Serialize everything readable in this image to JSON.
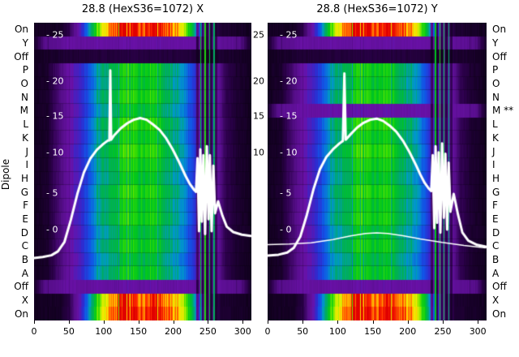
{
  "figure": {
    "background": "#ffffff",
    "text_color": "#000000"
  },
  "chart_data": {
    "type": "heatmap",
    "y_axis_label": "Dipole",
    "x_axis": {
      "ticks": [
        0,
        50,
        100,
        150,
        200,
        250,
        300
      ],
      "max": 312.5
    },
    "y_rows_left": [
      "On",
      "Y",
      "Off",
      "P",
      "O",
      "N",
      "M",
      "L",
      "K",
      "J",
      "I",
      "H",
      "G",
      "F",
      "E",
      "D",
      "C",
      "B",
      "A",
      "Off",
      "X",
      "On"
    ],
    "y_rows_right": [
      "On",
      "Y",
      "Off",
      "P",
      "O",
      "N",
      "M **",
      "L",
      "K",
      "J",
      "I",
      "H",
      "G",
      "F",
      "E",
      "D",
      "C",
      "B",
      "A",
      "Off",
      "X",
      "On"
    ],
    "inner_y_ticks": {
      "left_labels": [
        "- 25",
        "- 20",
        "- 15",
        "- 10",
        "- 5",
        "- 0"
      ],
      "left_pos": [
        0.04,
        0.196,
        0.312,
        0.437,
        0.572,
        0.695
      ],
      "right_labels": [
        "25",
        "20",
        "15",
        "10"
      ],
      "right_pos": [
        0.04,
        0.196,
        0.312,
        0.437
      ]
    },
    "overlay_color": "#ffffff",
    "colormap": [
      [
        0.0,
        "#0a0012"
      ],
      [
        0.08,
        "#2a0048"
      ],
      [
        0.16,
        "#560e8a"
      ],
      [
        0.24,
        "#6a11a8"
      ],
      [
        0.32,
        "#2e2bd0"
      ],
      [
        0.4,
        "#1155e8"
      ],
      [
        0.48,
        "#0099cc"
      ],
      [
        0.54,
        "#00aa66"
      ],
      [
        0.62,
        "#00c61e"
      ],
      [
        0.7,
        "#3fe000"
      ],
      [
        0.78,
        "#c8f000"
      ],
      [
        0.84,
        "#ffe400"
      ],
      [
        0.9,
        "#ff8c00"
      ],
      [
        0.96,
        "#ff2a00"
      ],
      [
        1.0,
        "#e00000"
      ]
    ],
    "profiles": {
      "main": [
        [
          0,
          0.02
        ],
        [
          0.06,
          0.04
        ],
        [
          0.1,
          0.12
        ],
        [
          0.14,
          0.18
        ],
        [
          0.18,
          0.25
        ],
        [
          0.22,
          0.33
        ],
        [
          0.26,
          0.42
        ],
        [
          0.3,
          0.5
        ],
        [
          0.34,
          0.56
        ],
        [
          0.38,
          0.61
        ],
        [
          0.43,
          0.64
        ],
        [
          0.5,
          0.66
        ],
        [
          0.56,
          0.63
        ],
        [
          0.6,
          0.59
        ],
        [
          0.64,
          0.54
        ],
        [
          0.68,
          0.47
        ],
        [
          0.72,
          0.38
        ],
        [
          0.76,
          0.3
        ],
        [
          0.8,
          0.27
        ],
        [
          0.84,
          0.23
        ],
        [
          0.88,
          0.1
        ],
        [
          0.93,
          0.05
        ],
        [
          1,
          0.02
        ]
      ],
      "rainbow": [
        [
          0,
          0.02
        ],
        [
          0.12,
          0.03
        ],
        [
          0.16,
          0.08
        ],
        [
          0.19,
          0.18
        ],
        [
          0.22,
          0.32
        ],
        [
          0.25,
          0.48
        ],
        [
          0.28,
          0.62
        ],
        [
          0.31,
          0.76
        ],
        [
          0.34,
          0.9
        ],
        [
          0.37,
          0.97
        ],
        [
          0.42,
          1.0
        ],
        [
          0.58,
          1.0
        ],
        [
          0.62,
          0.96
        ],
        [
          0.65,
          0.9
        ],
        [
          0.68,
          0.8
        ],
        [
          0.71,
          0.66
        ],
        [
          0.74,
          0.52
        ],
        [
          0.77,
          0.38
        ],
        [
          0.8,
          0.24
        ],
        [
          0.83,
          0.12
        ],
        [
          0.86,
          0.05
        ],
        [
          1,
          0.02
        ]
      ],
      "purpleband": [
        [
          0,
          0.04
        ],
        [
          0.05,
          0.16
        ],
        [
          0.15,
          0.21
        ],
        [
          0.5,
          0.23
        ],
        [
          0.85,
          0.21
        ],
        [
          0.95,
          0.16
        ],
        [
          1,
          0.04
        ]
      ],
      "dark": [
        [
          0,
          0.02
        ],
        [
          0.15,
          0.05
        ],
        [
          0.5,
          0.07
        ],
        [
          0.85,
          0.05
        ],
        [
          1,
          0.02
        ]
      ]
    },
    "stripes": [
      {
        "x": 0.752,
        "w": 0.012,
        "mode": "dark",
        "amt": 0.4
      },
      {
        "x": 0.768,
        "w": 0.006,
        "mode": "boost",
        "val": 0.62
      },
      {
        "x": 0.776,
        "w": 0.008,
        "mode": "dark",
        "amt": 0.3
      },
      {
        "x": 0.788,
        "w": 0.006,
        "mode": "boost",
        "val": 0.66
      },
      {
        "x": 0.797,
        "w": 0.01,
        "mode": "dark",
        "amt": 0.3
      },
      {
        "x": 0.808,
        "w": 0.005,
        "mode": "boost",
        "val": 0.6
      },
      {
        "x": 0.816,
        "w": 0.012,
        "mode": "dark",
        "amt": 0.35
      },
      {
        "x": 0.83,
        "w": 0.005,
        "mode": "boost",
        "val": 0.55
      },
      {
        "x": 0.839,
        "w": 0.01,
        "mode": "dark",
        "amt": 0.45
      }
    ],
    "panels": [
      {
        "id": "X",
        "title": "28.8 (HexS36=1072) X",
        "show_right_ticks": true,
        "rows": [
          {
            "label": "On",
            "profile": "rainbow",
            "mul": 1
          },
          {
            "label": "Y",
            "profile": "purpleband",
            "mul": 1
          },
          {
            "label": "Off",
            "profile": "dark",
            "mul": 1
          },
          {
            "label": "P",
            "profile": "main",
            "mul": 1
          },
          {
            "label": "O",
            "profile": "main",
            "mul": 0.97
          },
          {
            "label": "N",
            "profile": "main",
            "mul": 1.02
          },
          {
            "label": "M",
            "profile": "main",
            "mul": 0.95
          },
          {
            "label": "L",
            "profile": "main",
            "mul": 1.04
          },
          {
            "label": "K",
            "profile": "main",
            "mul": 0.99
          },
          {
            "label": "J",
            "profile": "main",
            "mul": 1.05
          },
          {
            "label": "I",
            "profile": "main",
            "mul": 1.0
          },
          {
            "label": "H",
            "profile": "main",
            "mul": 0.96
          },
          {
            "label": "G",
            "profile": "main",
            "mul": 1.03
          },
          {
            "label": "F",
            "profile": "main",
            "mul": 0.98
          },
          {
            "label": "E",
            "profile": "main",
            "mul": 1.01
          },
          {
            "label": "D",
            "profile": "main",
            "mul": 0.94
          },
          {
            "label": "C",
            "profile": "main",
            "mul": 0.99
          },
          {
            "label": "B",
            "profile": "main",
            "mul": 0.92
          },
          {
            "label": "A",
            "profile": "main",
            "mul": 0.97
          },
          {
            "label": "Off",
            "profile": "purpleband",
            "mul": 1
          },
          {
            "label": "X",
            "profile": "rainbow",
            "mul": 0.96
          },
          {
            "label": "On",
            "profile": "rainbow",
            "mul": 1
          }
        ],
        "curves": [
          "bell_x"
        ]
      },
      {
        "id": "Y",
        "title": "28.8 (HexS36=1072) Y",
        "show_right_ticks": false,
        "rows": [
          {
            "label": "On",
            "profile": "rainbow",
            "mul": 1
          },
          {
            "label": "Y",
            "profile": "purpleband",
            "mul": 1
          },
          {
            "label": "Off",
            "profile": "dark",
            "mul": 1
          },
          {
            "label": "P",
            "profile": "main",
            "mul": 1
          },
          {
            "label": "O",
            "profile": "main",
            "mul": 0.97
          },
          {
            "label": "N",
            "profile": "main",
            "mul": 1.02
          },
          {
            "label": "M **",
            "profile": "purpleband",
            "mul": 1.05
          },
          {
            "label": "L",
            "profile": "main",
            "mul": 1.04
          },
          {
            "label": "K",
            "profile": "main",
            "mul": 0.99
          },
          {
            "label": "J",
            "profile": "main",
            "mul": 1.05
          },
          {
            "label": "I",
            "profile": "main",
            "mul": 1.0
          },
          {
            "label": "H",
            "profile": "main",
            "mul": 0.96
          },
          {
            "label": "G",
            "profile": "main",
            "mul": 1.03
          },
          {
            "label": "F",
            "profile": "main",
            "mul": 0.98
          },
          {
            "label": "E",
            "profile": "main",
            "mul": 1.01
          },
          {
            "label": "D",
            "profile": "main",
            "mul": 0.94
          },
          {
            "label": "C",
            "profile": "main",
            "mul": 0.99
          },
          {
            "label": "B",
            "profile": "main",
            "mul": 0.92
          },
          {
            "label": "A",
            "profile": "main",
            "mul": 0.97
          },
          {
            "label": "Off",
            "profile": "purpleband",
            "mul": 1
          },
          {
            "label": "X",
            "profile": "rainbow",
            "mul": 0.96
          },
          {
            "label": "On",
            "profile": "rainbow",
            "mul": 1
          }
        ],
        "curves": [
          "flat_y",
          "bell_y"
        ]
      }
    ],
    "curves": {
      "bell_x": {
        "color": "#ffffff",
        "width": 3,
        "points": [
          [
            0,
            0.79
          ],
          [
            0.04,
            0.787
          ],
          [
            0.08,
            0.781
          ],
          [
            0.11,
            0.768
          ],
          [
            0.14,
            0.737
          ],
          [
            0.17,
            0.662
          ],
          [
            0.2,
            0.575
          ],
          [
            0.23,
            0.503
          ],
          [
            0.26,
            0.456
          ],
          [
            0.29,
            0.427
          ],
          [
            0.32,
            0.407
          ],
          [
            0.34,
            0.396
          ],
          [
            0.348,
            0.395
          ],
          [
            0.352,
            0.16
          ],
          [
            0.356,
            0.393
          ],
          [
            0.37,
            0.378
          ],
          [
            0.4,
            0.355
          ],
          [
            0.43,
            0.338
          ],
          [
            0.46,
            0.326
          ],
          [
            0.49,
            0.32
          ],
          [
            0.52,
            0.326
          ],
          [
            0.55,
            0.342
          ],
          [
            0.58,
            0.36
          ],
          [
            0.61,
            0.388
          ],
          [
            0.64,
            0.425
          ],
          [
            0.67,
            0.468
          ],
          [
            0.7,
            0.515
          ],
          [
            0.72,
            0.542
          ],
          [
            0.74,
            0.562
          ],
          [
            0.748,
            0.568
          ],
          [
            0.755,
            0.455
          ],
          [
            0.762,
            0.7
          ],
          [
            0.768,
            0.425
          ],
          [
            0.775,
            0.668
          ],
          [
            0.782,
            0.445
          ],
          [
            0.79,
            0.71
          ],
          [
            0.798,
            0.415
          ],
          [
            0.806,
            0.66
          ],
          [
            0.812,
            0.445
          ],
          [
            0.82,
            0.7
          ],
          [
            0.828,
            0.48
          ],
          [
            0.836,
            0.64
          ],
          [
            0.85,
            0.6
          ],
          [
            0.87,
            0.648
          ],
          [
            0.89,
            0.685
          ],
          [
            0.92,
            0.703
          ],
          [
            0.96,
            0.712
          ],
          [
            1,
            0.716
          ]
        ]
      },
      "bell_y": {
        "color": "#ffffff",
        "width": 3,
        "points": [
          [
            0,
            0.782
          ],
          [
            0.05,
            0.779
          ],
          [
            0.09,
            0.772
          ],
          [
            0.12,
            0.756
          ],
          [
            0.15,
            0.718
          ],
          [
            0.18,
            0.645
          ],
          [
            0.21,
            0.56
          ],
          [
            0.24,
            0.492
          ],
          [
            0.27,
            0.45
          ],
          [
            0.3,
            0.425
          ],
          [
            0.33,
            0.405
          ],
          [
            0.345,
            0.397
          ],
          [
            0.352,
            0.17
          ],
          [
            0.358,
            0.393
          ],
          [
            0.38,
            0.375
          ],
          [
            0.41,
            0.352
          ],
          [
            0.44,
            0.336
          ],
          [
            0.47,
            0.326
          ],
          [
            0.5,
            0.322
          ],
          [
            0.53,
            0.33
          ],
          [
            0.56,
            0.346
          ],
          [
            0.59,
            0.366
          ],
          [
            0.62,
            0.396
          ],
          [
            0.65,
            0.434
          ],
          [
            0.68,
            0.478
          ],
          [
            0.7,
            0.51
          ],
          [
            0.72,
            0.538
          ],
          [
            0.74,
            0.558
          ],
          [
            0.75,
            0.565
          ],
          [
            0.757,
            0.445
          ],
          [
            0.764,
            0.69
          ],
          [
            0.77,
            0.415
          ],
          [
            0.777,
            0.672
          ],
          [
            0.784,
            0.435
          ],
          [
            0.792,
            0.705
          ],
          [
            0.8,
            0.405
          ],
          [
            0.808,
            0.655
          ],
          [
            0.815,
            0.44
          ],
          [
            0.823,
            0.695
          ],
          [
            0.83,
            0.47
          ],
          [
            0.838,
            0.635
          ],
          [
            0.853,
            0.575
          ],
          [
            0.873,
            0.645
          ],
          [
            0.893,
            0.705
          ],
          [
            0.92,
            0.732
          ],
          [
            0.96,
            0.746
          ],
          [
            1,
            0.752
          ]
        ]
      },
      "flat_y": {
        "color": "#ffffff",
        "width": 1.5,
        "points": [
          [
            0,
            0.745
          ],
          [
            0.1,
            0.743
          ],
          [
            0.2,
            0.739
          ],
          [
            0.3,
            0.728
          ],
          [
            0.38,
            0.716
          ],
          [
            0.45,
            0.708
          ],
          [
            0.5,
            0.706
          ],
          [
            0.55,
            0.708
          ],
          [
            0.62,
            0.715
          ],
          [
            0.7,
            0.726
          ],
          [
            0.8,
            0.738
          ],
          [
            0.9,
            0.748
          ],
          [
            1,
            0.756
          ]
        ]
      }
    }
  }
}
